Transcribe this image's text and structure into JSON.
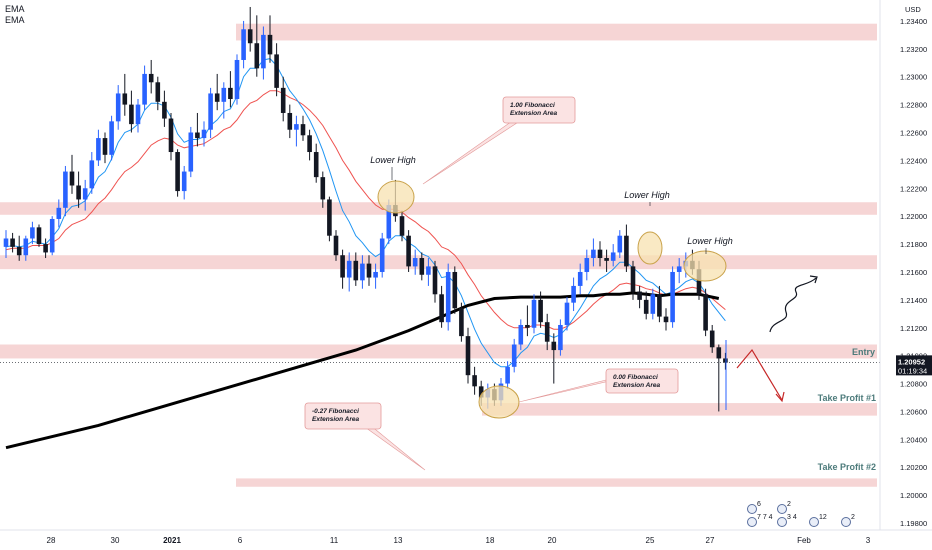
{
  "legend": {
    "ema1": "EMA",
    "ema2": "EMA"
  },
  "currency": "USD",
  "price_box": {
    "price": "1.20952",
    "countdown": "01:19:34"
  },
  "colors": {
    "up": "#2962ff",
    "down": "#131722",
    "zone": "#f6d5d5",
    "ema_fast": "#2196f3",
    "ema_slow": "#ef5350",
    "ema_long": "#000000",
    "callout_bg": "#fbe3e3",
    "callout_border": "#e39a9a",
    "label_text": "#4d7b7b",
    "arrow_red": "#c62828",
    "highlight": "#f7e2b0"
  },
  "chart_data": {
    "type": "candlestick",
    "title": "",
    "y_ticks": [
      "1.23400",
      "1.23200",
      "1.23000",
      "1.22800",
      "1.22600",
      "1.22400",
      "1.22200",
      "1.22000",
      "1.21800",
      "1.21600",
      "1.21400",
      "1.21200",
      "1.21000",
      "1.20800",
      "1.20600",
      "1.20400",
      "1.20200",
      "1.20000",
      "1.19800"
    ],
    "ylim": [
      1.1975,
      1.2355
    ],
    "x_ticks": [
      "28",
      "30",
      "2021",
      "6",
      "11",
      "13",
      "18",
      "20",
      "25",
      "27",
      "Feb",
      "3"
    ],
    "zones": [
      {
        "from": 1.2326,
        "to": 1.2338,
        "x_start": "6"
      },
      {
        "from": 1.2201,
        "to": 1.221
      },
      {
        "from": 1.2162,
        "to": 1.2172
      },
      {
        "from": 1.2098,
        "to": 1.2108
      },
      {
        "from": 1.2057,
        "to": 1.2066,
        "x_start": "18"
      },
      {
        "from": 1.2006,
        "to": 1.2012,
        "x_start": "6"
      }
    ],
    "zone_labels": [
      "Entry",
      "Take Profit #1",
      "Take Profit #2"
    ],
    "annotations": [
      "Lower High",
      "Lower High",
      "Lower High",
      "1.00 Fibonacci Extension Area",
      "0.00 Fibonacci Extension Area",
      "-0.27 Fibonacci Extension Area"
    ],
    "event_counts": [
      "6",
      "2",
      "7 7 4",
      "3 4",
      "12",
      "2"
    ],
    "candles": [
      [
        1.2178,
        1.219,
        1.217,
        1.2184
      ],
      [
        1.2184,
        1.2188,
        1.2174,
        1.2178
      ],
      [
        1.2178,
        1.2186,
        1.2168,
        1.2172
      ],
      [
        1.2172,
        1.2186,
        1.2168,
        1.2184
      ],
      [
        1.2184,
        1.2196,
        1.218,
        1.2192
      ],
      [
        1.2192,
        1.2194,
        1.2178,
        1.218
      ],
      [
        1.218,
        1.2184,
        1.217,
        1.2174
      ],
      [
        1.2174,
        1.22,
        1.2172,
        1.2198
      ],
      [
        1.2198,
        1.2212,
        1.2192,
        1.2206
      ],
      [
        1.2206,
        1.2236,
        1.22,
        1.2232
      ],
      [
        1.2232,
        1.2244,
        1.2216,
        1.2222
      ],
      [
        1.2222,
        1.2232,
        1.2206,
        1.2212
      ],
      [
        1.2212,
        1.2226,
        1.2204,
        1.222
      ],
      [
        1.222,
        1.2246,
        1.2216,
        1.224
      ],
      [
        1.224,
        1.2262,
        1.2236,
        1.2256
      ],
      [
        1.2256,
        1.226,
        1.2238,
        1.2244
      ],
      [
        1.2244,
        1.2272,
        1.224,
        1.2268
      ],
      [
        1.2268,
        1.2294,
        1.2262,
        1.2288
      ],
      [
        1.2288,
        1.2302,
        1.2272,
        1.228
      ],
      [
        1.228,
        1.229,
        1.226,
        1.2266
      ],
      [
        1.2266,
        1.2284,
        1.226,
        1.228
      ],
      [
        1.228,
        1.2308,
        1.2276,
        1.2302
      ],
      [
        1.2302,
        1.2312,
        1.2288,
        1.2296
      ],
      [
        1.2296,
        1.23,
        1.2276,
        1.2282
      ],
      [
        1.2282,
        1.229,
        1.2264,
        1.227
      ],
      [
        1.227,
        1.2274,
        1.224,
        1.2246
      ],
      [
        1.2246,
        1.2248,
        1.2214,
        1.2218
      ],
      [
        1.2218,
        1.2236,
        1.2212,
        1.2232
      ],
      [
        1.2232,
        1.2264,
        1.2228,
        1.226
      ],
      [
        1.226,
        1.2274,
        1.225,
        1.2256
      ],
      [
        1.2256,
        1.2268,
        1.225,
        1.2262
      ],
      [
        1.2262,
        1.2292,
        1.2256,
        1.2288
      ],
      [
        1.2288,
        1.2302,
        1.2276,
        1.2282
      ],
      [
        1.2282,
        1.2296,
        1.227,
        1.2292
      ],
      [
        1.2292,
        1.2304,
        1.2278,
        1.2284
      ],
      [
        1.2284,
        1.2316,
        1.228,
        1.2312
      ],
      [
        1.2312,
        1.234,
        1.2306,
        1.2334
      ],
      [
        1.2334,
        1.235,
        1.2318,
        1.2324
      ],
      [
        1.2324,
        1.2344,
        1.23,
        1.2306
      ],
      [
        1.2306,
        1.2336,
        1.2298,
        1.233
      ],
      [
        1.233,
        1.2344,
        1.231,
        1.2316
      ],
      [
        1.2316,
        1.2324,
        1.2286,
        1.2292
      ],
      [
        1.2292,
        1.23,
        1.2268,
        1.2274
      ],
      [
        1.2274,
        1.228,
        1.2256,
        1.2262
      ],
      [
        1.2262,
        1.2272,
        1.225,
        1.2266
      ],
      [
        1.2266,
        1.2272,
        1.2254,
        1.2258
      ],
      [
        1.2258,
        1.2262,
        1.224,
        1.2246
      ],
      [
        1.2246,
        1.2252,
        1.2224,
        1.2228
      ],
      [
        1.2228,
        1.2232,
        1.2206,
        1.2212
      ],
      [
        1.2212,
        1.2214,
        1.2182,
        1.2186
      ],
      [
        1.2186,
        1.219,
        1.2168,
        1.2172
      ],
      [
        1.2172,
        1.2176,
        1.2148,
        1.2156
      ],
      [
        1.2156,
        1.2174,
        1.2146,
        1.2168
      ],
      [
        1.2168,
        1.2174,
        1.215,
        1.2154
      ],
      [
        1.2154,
        1.2172,
        1.2148,
        1.2166
      ],
      [
        1.2166,
        1.2172,
        1.215,
        1.2156
      ],
      [
        1.2156,
        1.2166,
        1.2148,
        1.216
      ],
      [
        1.216,
        1.2188,
        1.2156,
        1.2184
      ],
      [
        1.2184,
        1.2212,
        1.218,
        1.2208
      ],
      [
        1.2208,
        1.2226,
        1.2196,
        1.22
      ],
      [
        1.22,
        1.2204,
        1.2182,
        1.2186
      ],
      [
        1.2186,
        1.219,
        1.216,
        1.2164
      ],
      [
        1.2164,
        1.2176,
        1.2158,
        1.217
      ],
      [
        1.217,
        1.2174,
        1.2154,
        1.2158
      ],
      [
        1.2158,
        1.217,
        1.215,
        1.2164
      ],
      [
        1.2164,
        1.2168,
        1.2138,
        1.2144
      ],
      [
        1.2144,
        1.215,
        1.212,
        1.2124
      ],
      [
        1.2124,
        1.2166,
        1.2118,
        1.216
      ],
      [
        1.216,
        1.2164,
        1.213,
        1.2134
      ],
      [
        1.2134,
        1.2138,
        1.211,
        1.2114
      ],
      [
        1.2114,
        1.212,
        1.208,
        1.2086
      ],
      [
        1.2086,
        1.2092,
        1.2072,
        1.2078
      ],
      [
        1.2078,
        1.2082,
        1.2064,
        1.207
      ],
      [
        1.207,
        1.208,
        1.2062,
        1.2076
      ],
      [
        1.2076,
        1.208,
        1.2064,
        1.2068
      ],
      [
        1.2068,
        1.2084,
        1.2064,
        1.208
      ],
      [
        1.208,
        1.2096,
        1.2076,
        1.2092
      ],
      [
        1.2092,
        1.2112,
        1.2088,
        1.2108
      ],
      [
        1.2108,
        1.2126,
        1.2104,
        1.2122
      ],
      [
        1.2122,
        1.2136,
        1.2114,
        1.212
      ],
      [
        1.212,
        1.2144,
        1.2116,
        1.214
      ],
      [
        1.214,
        1.2146,
        1.212,
        1.2124
      ],
      [
        1.2124,
        1.213,
        1.2104,
        1.211
      ],
      [
        1.211,
        1.2116,
        1.208,
        1.2104
      ],
      [
        1.2104,
        1.2126,
        1.21,
        1.2122
      ],
      [
        1.2122,
        1.2142,
        1.2118,
        1.2138
      ],
      [
        1.2138,
        1.2156,
        1.2132,
        1.215
      ],
      [
        1.215,
        1.2166,
        1.2144,
        1.216
      ],
      [
        1.216,
        1.2176,
        1.2154,
        1.217
      ],
      [
        1.217,
        1.2184,
        1.2164,
        1.2176
      ],
      [
        1.2176,
        1.2182,
        1.2164,
        1.217
      ],
      [
        1.217,
        1.2176,
        1.216,
        1.2168
      ],
      [
        1.2168,
        1.218,
        1.2164,
        1.2174
      ],
      [
        1.2174,
        1.219,
        1.217,
        1.2186
      ],
      [
        1.2186,
        1.2194,
        1.216,
        1.2164
      ],
      [
        1.2164,
        1.2168,
        1.214,
        1.2146
      ],
      [
        1.2146,
        1.215,
        1.2134,
        1.214
      ],
      [
        1.214,
        1.2146,
        1.2126,
        1.213
      ],
      [
        1.213,
        1.2148,
        1.2126,
        1.2144
      ],
      [
        1.2144,
        1.215,
        1.2124,
        1.2128
      ],
      [
        1.2128,
        1.2134,
        1.2118,
        1.2124
      ],
      [
        1.2124,
        1.2164,
        1.212,
        1.216
      ],
      [
        1.216,
        1.217,
        1.2152,
        1.2164
      ],
      [
        1.2164,
        1.2174,
        1.2156,
        1.2168
      ],
      [
        1.2168,
        1.2176,
        1.2158,
        1.2162
      ],
      [
        1.2162,
        1.2168,
        1.214,
        1.2144
      ],
      [
        1.2144,
        1.2148,
        1.2114,
        1.2118
      ],
      [
        1.2118,
        1.2122,
        1.2102,
        1.2106
      ],
      [
        1.2106,
        1.2108,
        1.206,
        1.2098
      ],
      [
        1.2098,
        1.2102,
        1.209,
        1.2095
      ]
    ],
    "ema_fast": [
      1.2178,
      1.2179,
      1.2178,
      1.2179,
      1.2182,
      1.2181,
      1.218,
      1.2185,
      1.2191,
      1.2202,
      1.2207,
      1.2208,
      1.2211,
      1.2219,
      1.2228,
      1.2232,
      1.2241,
      1.2253,
      1.226,
      1.2262,
      1.2266,
      1.2276,
      1.2281,
      1.2281,
      1.2279,
      1.2271,
      1.2259,
      1.2253,
      1.2255,
      1.2255,
      1.2257,
      1.2265,
      1.2269,
      1.2275,
      1.2277,
      1.2286,
      1.23,
      1.2306,
      1.2306,
      1.2312,
      1.2313,
      1.2308,
      1.2299,
      1.229,
      1.2284,
      1.2277,
      1.2269,
      1.2259,
      1.2247,
      1.2233,
      1.2218,
      1.2204,
      1.2196,
      1.2186,
      1.2181,
      1.2175,
      1.2171,
      1.2174,
      1.2182,
      1.2186,
      1.2186,
      1.2181,
      1.2178,
      1.2173,
      1.2171,
      1.2165,
      1.2156,
      1.2157,
      1.2152,
      1.2143,
      1.2131,
      1.2119,
      1.2109,
      1.2102,
      1.2095,
      1.2092,
      1.2092,
      1.2096,
      1.2102,
      1.2106,
      1.2114,
      1.2116,
      1.2115,
      1.2113,
      1.2115,
      1.212,
      1.2127,
      1.2134,
      1.2142,
      1.215,
      1.2155,
      1.2158,
      1.2162,
      1.2167,
      1.2167,
      1.2163,
      1.2159,
      1.2154,
      1.2152,
      1.2148,
      1.2144,
      1.2146,
      1.2149,
      1.2153,
      1.2155,
      1.2152,
      1.2145,
      1.2137,
      1.2131,
      1.2125
    ],
    "ema_slow": [
      1.2176,
      1.2177,
      1.2177,
      1.2177,
      1.2179,
      1.2179,
      1.2179,
      1.2181,
      1.2184,
      1.219,
      1.2194,
      1.2196,
      1.2198,
      1.2203,
      1.2209,
      1.2213,
      1.2219,
      1.2226,
      1.2232,
      1.2235,
      1.2239,
      1.2245,
      1.2251,
      1.2254,
      1.2256,
      1.2255,
      1.2251,
      1.2249,
      1.225,
      1.2251,
      1.2252,
      1.2255,
      1.2258,
      1.2262,
      1.2264,
      1.2269,
      1.2276,
      1.2281,
      1.2283,
      1.2287,
      1.229,
      1.229,
      1.2288,
      1.2285,
      1.2283,
      1.228,
      1.2276,
      1.2271,
      1.2265,
      1.2257,
      1.2249,
      1.224,
      1.2233,
      1.2225,
      1.2219,
      1.2213,
      1.2208,
      1.2205,
      1.2205,
      1.2205,
      1.2203,
      1.2199,
      1.2196,
      1.2192,
      1.2189,
      1.2184,
      1.2178,
      1.2176,
      1.2172,
      1.2166,
      1.2158,
      1.2151,
      1.2143,
      1.2137,
      1.2131,
      1.2126,
      1.2122,
      1.212,
      1.212,
      1.212,
      1.2122,
      1.2122,
      1.2121,
      1.2119,
      1.2119,
      1.2121,
      1.2124,
      1.2128,
      1.2132,
      1.2137,
      1.2141,
      1.2144,
      1.2147,
      1.2151,
      1.2152,
      1.2151,
      1.215,
      1.2148,
      1.2147,
      1.2145,
      1.2143,
      1.2144,
      1.2146,
      1.2148,
      1.2149,
      1.2148,
      1.2145,
      1.2141,
      1.2137,
      1.2133
    ],
    "ema_long": [
      [
        1.2034,
        1.205,
        1.2068,
        1.2086,
        1.2104,
        1.2118,
        1.2128,
        1.2136,
        1.2141,
        1.2142,
        1.2142,
        1.2142,
        1.2143,
        1.2143,
        1.2144,
        1.2144,
        1.2145,
        1.2144,
        1.2143,
        1.2144,
        1.2144,
        1.2144,
        1.2143,
        1.2142,
        1.2141
      ],
      [
        0,
        14,
        27,
        40,
        53,
        61,
        66,
        70,
        74,
        78,
        81,
        84,
        87,
        89,
        91,
        93,
        95,
        97,
        99,
        101,
        103,
        105,
        106,
        107,
        108
      ]
    ]
  }
}
